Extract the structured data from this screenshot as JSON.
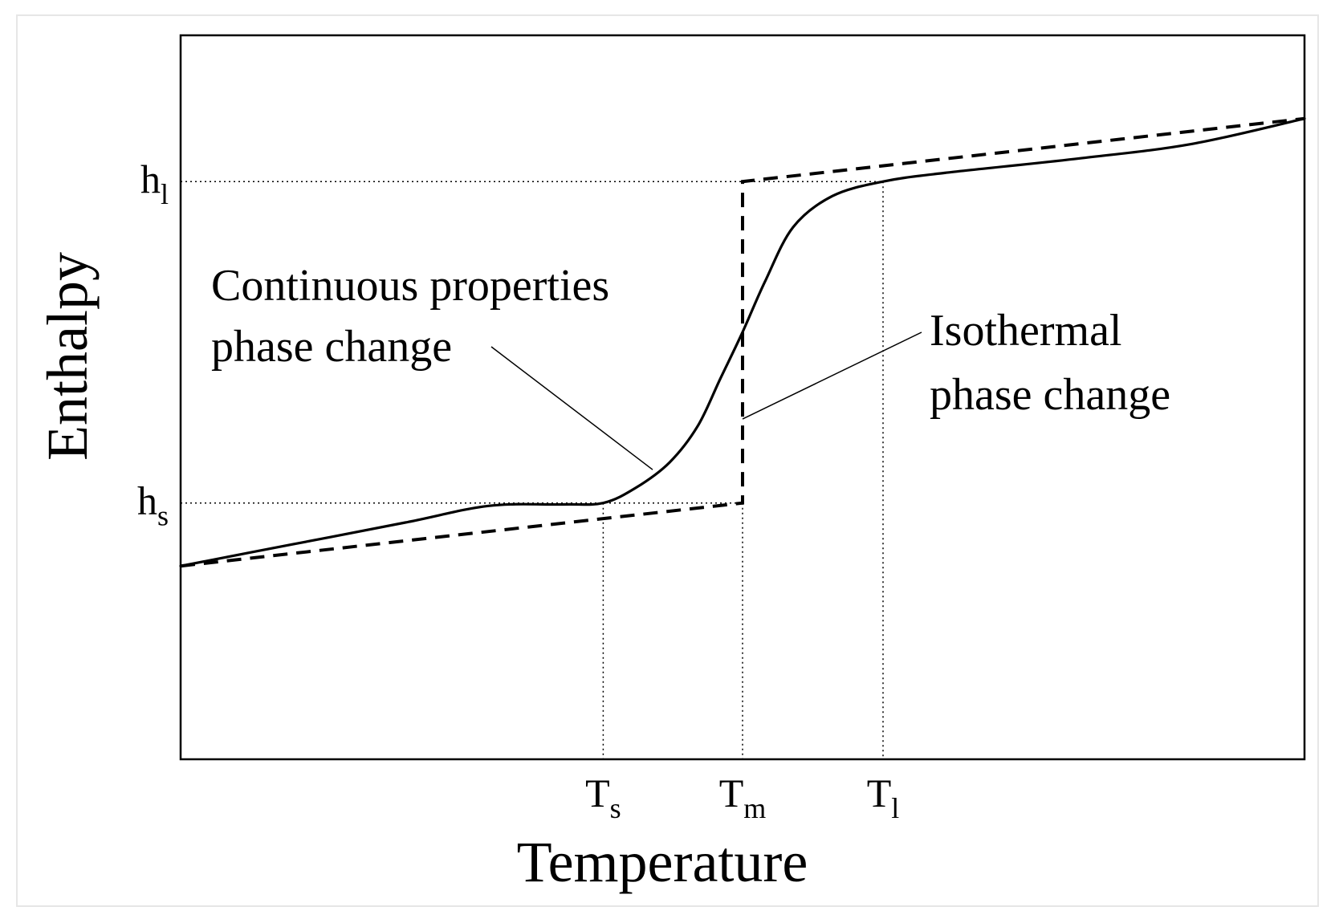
{
  "chart_data": {
    "type": "line",
    "title": "",
    "xlabel": "Temperature",
    "ylabel": "Enthalpy",
    "x_ticks": [
      {
        "id": "Ts",
        "base": "T",
        "sub": "s",
        "value": 0.376
      },
      {
        "id": "Tm",
        "base": "T",
        "sub": "m",
        "value": 0.5
      },
      {
        "id": "Tl",
        "base": "T",
        "sub": "l",
        "value": 0.625
      }
    ],
    "y_ticks": [
      {
        "id": "hs",
        "base": "h",
        "sub": "s",
        "value": 0.354
      },
      {
        "id": "hl",
        "base": "h",
        "sub": "l",
        "value": 0.798
      }
    ],
    "xlim": [
      0,
      1
    ],
    "ylim": [
      0,
      1
    ],
    "grid": false,
    "legend": "none",
    "series": [
      {
        "id": "continuous",
        "style": "solid",
        "x": [
          0,
          0.1,
          0.2,
          0.274,
          0.34,
          0.376,
          0.405,
          0.435,
          0.46,
          0.48,
          0.5,
          0.52,
          0.545,
          0.58,
          0.625,
          0.68,
          0.8,
          0.9,
          1.0
        ],
        "y": [
          0.267,
          0.297,
          0.327,
          0.35,
          0.352,
          0.354,
          0.375,
          0.41,
          0.46,
          0.525,
          0.59,
          0.66,
          0.735,
          0.778,
          0.798,
          0.81,
          0.83,
          0.85,
          0.885
        ]
      },
      {
        "id": "isothermal",
        "style": "dashed",
        "x": [
          0,
          0.5,
          0.5,
          1.0
        ],
        "y": [
          0.267,
          0.354,
          0.798,
          0.885
        ]
      }
    ],
    "annotations": [
      {
        "id": "continuous",
        "lines": [
          "Continuous properties",
          "phase change"
        ],
        "points_to": {
          "x": 0.42,
          "y": 0.4
        }
      },
      {
        "id": "isothermal",
        "lines": [
          "Isothermal",
          "phase change"
        ],
        "points_to": {
          "x": 0.5,
          "y": 0.47
        }
      }
    ]
  }
}
